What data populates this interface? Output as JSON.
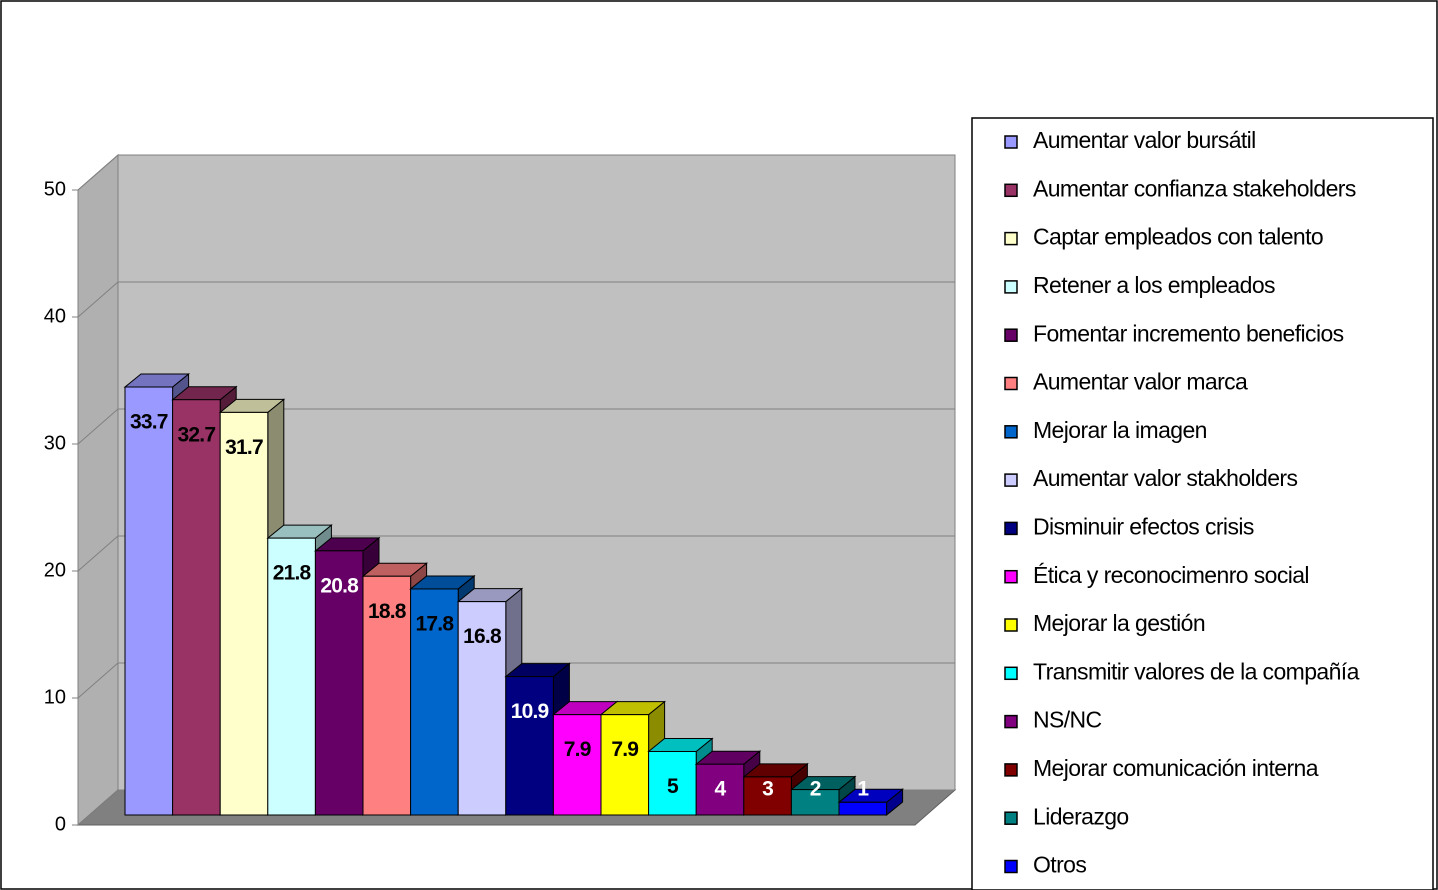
{
  "chart_data": {
    "type": "bar3d",
    "categories": [
      "Aumentar valor bursátil",
      "Aumentar confianza stakeholders",
      "Captar empleados con talento",
      "Retener a los empleados",
      "Fomentar incremento beneficios",
      "Aumentar valor marca",
      "Mejorar la imagen",
      "Aumentar valor stakholders",
      "Disminuir efectos crisis",
      "Ética y reconocimenro social",
      "Mejorar la gestión",
      "Transmitir valores de la compañía",
      "NS/NC",
      "Mejorar comunicación interna",
      "Liderazgo",
      "Otros"
    ],
    "values": [
      33.7,
      32.7,
      31.7,
      21.8,
      20.8,
      18.8,
      17.8,
      16.8,
      10.9,
      7.9,
      7.9,
      5,
      4,
      3,
      2,
      1
    ],
    "colors": [
      "#9999ff",
      "#993366",
      "#ffffcc",
      "#ccffff",
      "#660066",
      "#ff8080",
      "#0066cc",
      "#ccccff",
      "#000080",
      "#ff00ff",
      "#ffff00",
      "#00ffff",
      "#800080",
      "#800000",
      "#008080",
      "#0000ff"
    ],
    "value_label_colors": [
      "#000000",
      "#000000",
      "#000000",
      "#000000",
      "#ffffff",
      "#000000",
      "#000000",
      "#000000",
      "#ffffff",
      "#000000",
      "#000000",
      "#000000",
      "#ffffff",
      "#ffffff",
      "#ffffff",
      "#ffffff"
    ],
    "ylim": [
      0,
      50
    ],
    "yticks": [
      0,
      10,
      20,
      30,
      40,
      50
    ],
    "grid": true,
    "legend": "right"
  }
}
